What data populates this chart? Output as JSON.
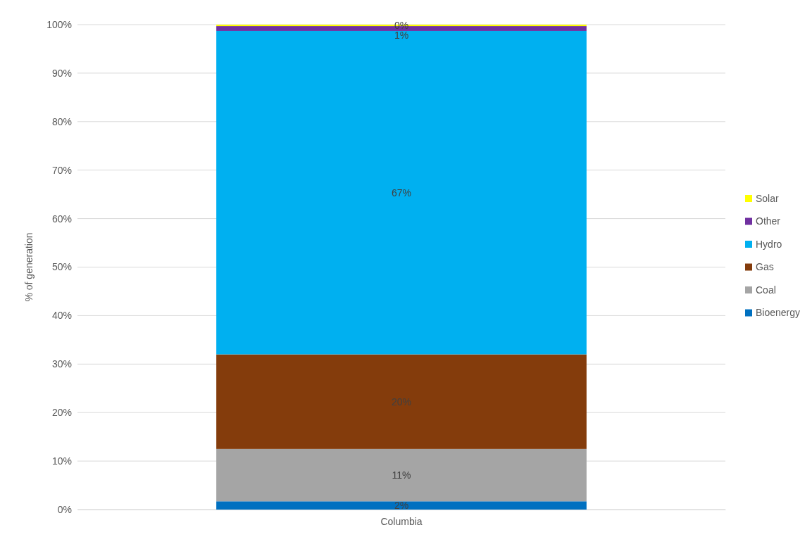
{
  "chart_data": {
    "type": "bar",
    "stacked": true,
    "categories": [
      "Columbia"
    ],
    "ylabel": "% of generation",
    "ylim": [
      0,
      100
    ],
    "yticks": [
      {
        "value": 0,
        "label": "0%"
      },
      {
        "value": 10,
        "label": "10%"
      },
      {
        "value": 20,
        "label": "20%"
      },
      {
        "value": 30,
        "label": "30%"
      },
      {
        "value": 40,
        "label": "40%"
      },
      {
        "value": 50,
        "label": "50%"
      },
      {
        "value": 60,
        "label": "60%"
      },
      {
        "value": 70,
        "label": "70%"
      },
      {
        "value": 80,
        "label": "80%"
      },
      {
        "value": 90,
        "label": "90%"
      },
      {
        "value": 100,
        "label": "100%"
      }
    ],
    "grid": "y",
    "legend": "right",
    "series": [
      {
        "name": "Bioenergy",
        "color": "#0070c0",
        "values": [
          1.7
        ],
        "value_labels": [
          "2%"
        ]
      },
      {
        "name": "Coal",
        "color": "#a5a5a5",
        "values": [
          10.8
        ],
        "value_labels": [
          "11%"
        ]
      },
      {
        "name": "Gas",
        "color": "#843c0c",
        "values": [
          19.5
        ],
        "value_labels": [
          "20%"
        ]
      },
      {
        "name": "Hydro",
        "color": "#00b0f0",
        "values": [
          66.7
        ],
        "value_labels": [
          "67%"
        ]
      },
      {
        "name": "Other",
        "color": "#7030a0",
        "values": [
          1.0
        ],
        "value_labels": [
          "1%"
        ]
      },
      {
        "name": "Solar",
        "color": "#ffff00",
        "values": [
          0.3
        ],
        "value_labels": [
          "0%"
        ]
      }
    ]
  }
}
